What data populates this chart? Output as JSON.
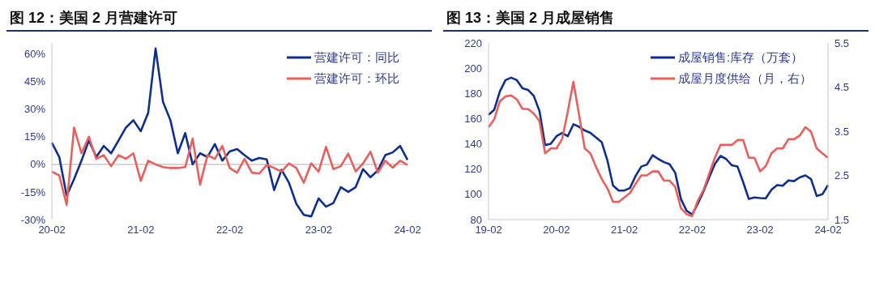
{
  "chart_data": [
    {
      "type": "line",
      "title": "图 12：美国 2 月营建许可",
      "categories": [
        "20-02",
        null,
        null,
        null,
        null,
        null,
        null,
        null,
        null,
        null,
        null,
        null,
        "21-02",
        null,
        null,
        null,
        null,
        null,
        null,
        null,
        null,
        null,
        null,
        null,
        "22-02",
        null,
        null,
        null,
        null,
        null,
        null,
        null,
        null,
        null,
        null,
        null,
        "23-02",
        null,
        null,
        null,
        null,
        null,
        null,
        null,
        null,
        null,
        null,
        null,
        "24-02"
      ],
      "series": [
        {
          "name": "营建许可：同比",
          "color": "#0f2f8f",
          "values": [
            11.8,
            4,
            -17,
            -8,
            2,
            13,
            4,
            10,
            6,
            13,
            20,
            24,
            18,
            28,
            63,
            34,
            24,
            6,
            17,
            0,
            6,
            4,
            11,
            2,
            7,
            8.3,
            5,
            2,
            3.5,
            2.7,
            -14,
            -3,
            -10,
            -21.5,
            -27.5,
            -28.3,
            -18.5,
            -23,
            -21,
            -12.4,
            -15,
            -12.4,
            -2.6,
            -7,
            -3.3,
            5,
            6.5,
            10,
            2.4
          ]
        },
        {
          "name": "营建许可：环比",
          "color": "#e8605c",
          "values": [
            -4,
            -6,
            -22,
            20,
            6,
            15,
            3,
            5,
            -1,
            5,
            3,
            6,
            -9,
            2,
            0,
            -1.5,
            -2,
            -2,
            -1.5,
            14,
            -11,
            5,
            3,
            10,
            -2,
            -4.5,
            3,
            -4.5,
            -5,
            -0.3,
            -2,
            -4,
            0.5,
            -2,
            -10,
            0.5,
            -4,
            9.5,
            -2.6,
            -1,
            5.8,
            -3.8,
            0.5,
            6.8,
            -4.5,
            2,
            -1.8,
            2,
            -0.3
          ]
        }
      ],
      "ylim": [
        -30,
        66
      ],
      "yticks": [
        {
          "value": -30,
          "label": "-30%"
        },
        {
          "value": -15,
          "label": "-15%"
        },
        {
          "value": 0,
          "label": "0%"
        },
        {
          "value": 15,
          "label": "15%"
        },
        {
          "value": 30,
          "label": "30%"
        },
        {
          "value": 45,
          "label": "45%"
        },
        {
          "value": 60,
          "label": "60%"
        }
      ],
      "ref_lines": [
        {
          "axis": "y",
          "value": 0,
          "color": "#c8c8c8"
        }
      ],
      "grid": false,
      "legend": "top right",
      "line_style": "solid"
    },
    {
      "type": "line",
      "title": "图 13：美国 2 月成屋销售",
      "categories": [
        "19-02",
        null,
        null,
        null,
        null,
        null,
        null,
        null,
        null,
        null,
        null,
        null,
        "20-02",
        null,
        null,
        null,
        null,
        null,
        null,
        null,
        null,
        null,
        null,
        null,
        "21-02",
        null,
        null,
        null,
        null,
        null,
        null,
        null,
        null,
        null,
        null,
        null,
        "22-02",
        null,
        null,
        null,
        null,
        null,
        null,
        null,
        null,
        null,
        null,
        null,
        "23-02",
        null,
        null,
        null,
        null,
        null,
        null,
        null,
        null,
        null,
        null,
        null,
        "24-02"
      ],
      "series": [
        {
          "name": "成屋销售:库存（万套）",
          "color": "#0f2f8f",
          "values": [
            163,
            167,
            181.5,
            190.5,
            192.5,
            190.5,
            184,
            182.7,
            178,
            166,
            139,
            140,
            146,
            148.7,
            146,
            155.5,
            153.5,
            150.6,
            148.7,
            145,
            141.4,
            127,
            107,
            103,
            103,
            105,
            114.6,
            122,
            123.6,
            131,
            128,
            125.5,
            123.8,
            117,
            96.3,
            87,
            84,
            92.7,
            102.4,
            113.4,
            124,
            130.4,
            128,
            123,
            122,
            109.7,
            96.3,
            97.5,
            97,
            96.8,
            103.6,
            107.3,
            106.8,
            111,
            110.4,
            113.4,
            115,
            112,
            98.7,
            100,
            107.3
          ]
        },
        {
          "name": "成屋月度供给（月，右）",
          "color": "#e8605c",
          "axis": "y2",
          "values": [
            3.59,
            3.77,
            4.18,
            4.29,
            4.31,
            4.22,
            4.01,
            4.0,
            3.9,
            3.73,
            3.0,
            3.11,
            3.11,
            3.32,
            3.94,
            4.62,
            3.87,
            3.11,
            3.0,
            2.69,
            2.42,
            2.21,
            1.9,
            1.9,
            2.0,
            2.1,
            2.31,
            2.5,
            2.5,
            2.59,
            2.59,
            2.38,
            2.38,
            2.24,
            1.76,
            1.62,
            1.58,
            1.93,
            2.17,
            2.54,
            2.9,
            3.19,
            3.19,
            3.19,
            3.3,
            3.3,
            2.9,
            2.9,
            2.59,
            2.71,
            3.0,
            3.11,
            3.11,
            3.32,
            3.32,
            3.4,
            3.59,
            3.49,
            3.11,
            3.0,
            2.9
          ]
        }
      ],
      "ylim": [
        80,
        220
      ],
      "yticks": [
        80,
        100,
        120,
        140,
        160,
        180,
        200,
        220
      ],
      "y2lim": [
        1.5,
        5.5
      ],
      "y2ticks": [
        1.5,
        2.5,
        3.5,
        4.5,
        5.5
      ],
      "grid": false,
      "legend": "top right",
      "line_style": "solid"
    }
  ]
}
